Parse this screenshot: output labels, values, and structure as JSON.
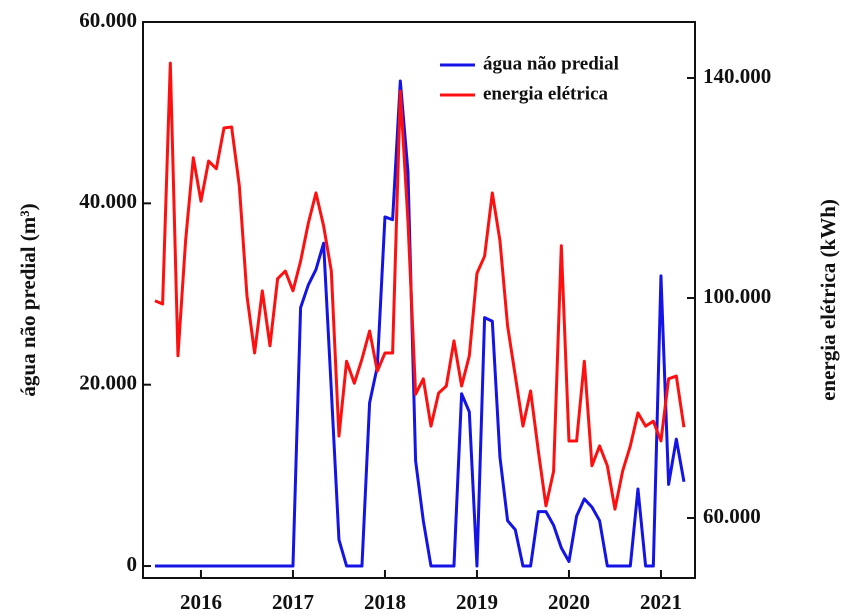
{
  "chart_data": {
    "type": "line",
    "x": [
      2015.5,
      2015.583,
      2015.667,
      2015.75,
      2015.833,
      2015.917,
      2016,
      2016.083,
      2016.167,
      2016.25,
      2016.333,
      2016.417,
      2016.5,
      2016.583,
      2016.667,
      2016.75,
      2016.833,
      2016.917,
      2017,
      2017.083,
      2017.167,
      2017.25,
      2017.333,
      2017.417,
      2017.5,
      2017.583,
      2017.667,
      2017.75,
      2017.833,
      2017.917,
      2018,
      2018.083,
      2018.167,
      2018.25,
      2018.333,
      2018.417,
      2018.5,
      2018.583,
      2018.667,
      2018.75,
      2018.833,
      2018.917,
      2019,
      2019.083,
      2019.167,
      2019.25,
      2019.333,
      2019.417,
      2019.5,
      2019.583,
      2019.667,
      2019.75,
      2019.833,
      2019.917,
      2020,
      2020.083,
      2020.167,
      2020.25,
      2020.333,
      2020.417,
      2020.5,
      2020.583,
      2020.667,
      2020.75,
      2020.833,
      2020.917,
      2021,
      2021.083,
      2021.167,
      2021.25
    ],
    "series": [
      {
        "name": "água não predial",
        "color": "#1414e6",
        "values": [
          0,
          0,
          0,
          0,
          0,
          0,
          0,
          0,
          0,
          0,
          0,
          0,
          0,
          0,
          0,
          0,
          0,
          0,
          0,
          28500,
          31000,
          32700,
          35600,
          19400,
          2900,
          0,
          0,
          0,
          18000,
          22000,
          38500,
          38200,
          53500,
          43500,
          11600,
          5000,
          0,
          0,
          0,
          0,
          19000,
          17000,
          0,
          27400,
          27000,
          12000,
          5000,
          4000,
          0,
          0,
          6000,
          6000,
          4500,
          2000,
          500,
          5500,
          7400,
          6500,
          5000,
          0,
          0,
          0,
          0,
          8500,
          0,
          0,
          32000,
          9000,
          14000,
          9300
        ]
      },
      {
        "name": "energia elétrica",
        "color": "#ff1010",
        "axis": "y2",
        "values": [
          99500,
          98900,
          142700,
          89500,
          110400,
          125500,
          117600,
          124900,
          123500,
          130900,
          131100,
          120400,
          100400,
          90000,
          101300,
          91300,
          103500,
          104900,
          101300,
          106700,
          113600,
          119100,
          113100,
          104900,
          74900,
          88500,
          84500,
          88900,
          94000,
          86700,
          90000,
          90000,
          137600,
          114000,
          82500,
          85300,
          76700,
          82700,
          84000,
          92200,
          84000,
          89500,
          104500,
          107600,
          119100,
          110400,
          94900,
          85800,
          76700,
          83100,
          72200,
          62200,
          68500,
          109500,
          74000,
          74000,
          88500,
          69500,
          73100,
          69500,
          61600,
          68500,
          73100,
          79100,
          76700,
          77600,
          74000,
          85300,
          85800,
          76500
        ]
      }
    ],
    "y_label": "água não predial (m³)",
    "y2_label": "energia elétrica (kWh)",
    "xlim": [
      2015.37,
      2021.37
    ],
    "xticks": [
      2016,
      2017,
      2018,
      2019,
      2020,
      2021
    ],
    "ylim": [
      -1320,
      60000
    ],
    "yticks": [
      0,
      {
        "value": 20000,
        "label": "20.000"
      },
      {
        "value": 40000,
        "label": "40.000"
      },
      {
        "value": 60000,
        "label": "60.000"
      }
    ],
    "y2lim": [
      49090,
      150180
    ],
    "y2ticks": [
      {
        "value": 60000,
        "label": "60.000"
      },
      {
        "value": 100000,
        "label": "100.000"
      },
      {
        "value": 140000,
        "label": "140.000"
      }
    ],
    "legend": "upper right"
  }
}
